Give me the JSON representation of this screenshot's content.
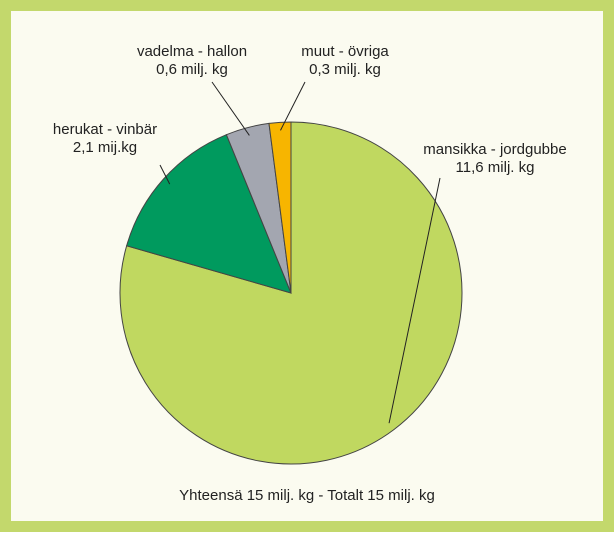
{
  "chart_data": {
    "type": "pie",
    "categories": [
      "mansikka - jordgubbe",
      "herukat - vinbär",
      "vadelma - hallon",
      "muut - övriga"
    ],
    "values": [
      11.6,
      2.1,
      0.6,
      0.3
    ],
    "value_labels": [
      "11,6 milj. kg",
      "2,1 mij.kg",
      "0,6 milj. kg",
      "0,3 milj. kg"
    ],
    "colors": [
      "#c0d860",
      "#009a5e",
      "#a3a6b0",
      "#f7b500"
    ],
    "annotation": "Yhteensä 15 milj. kg - Totalt 15 milj. kg"
  }
}
